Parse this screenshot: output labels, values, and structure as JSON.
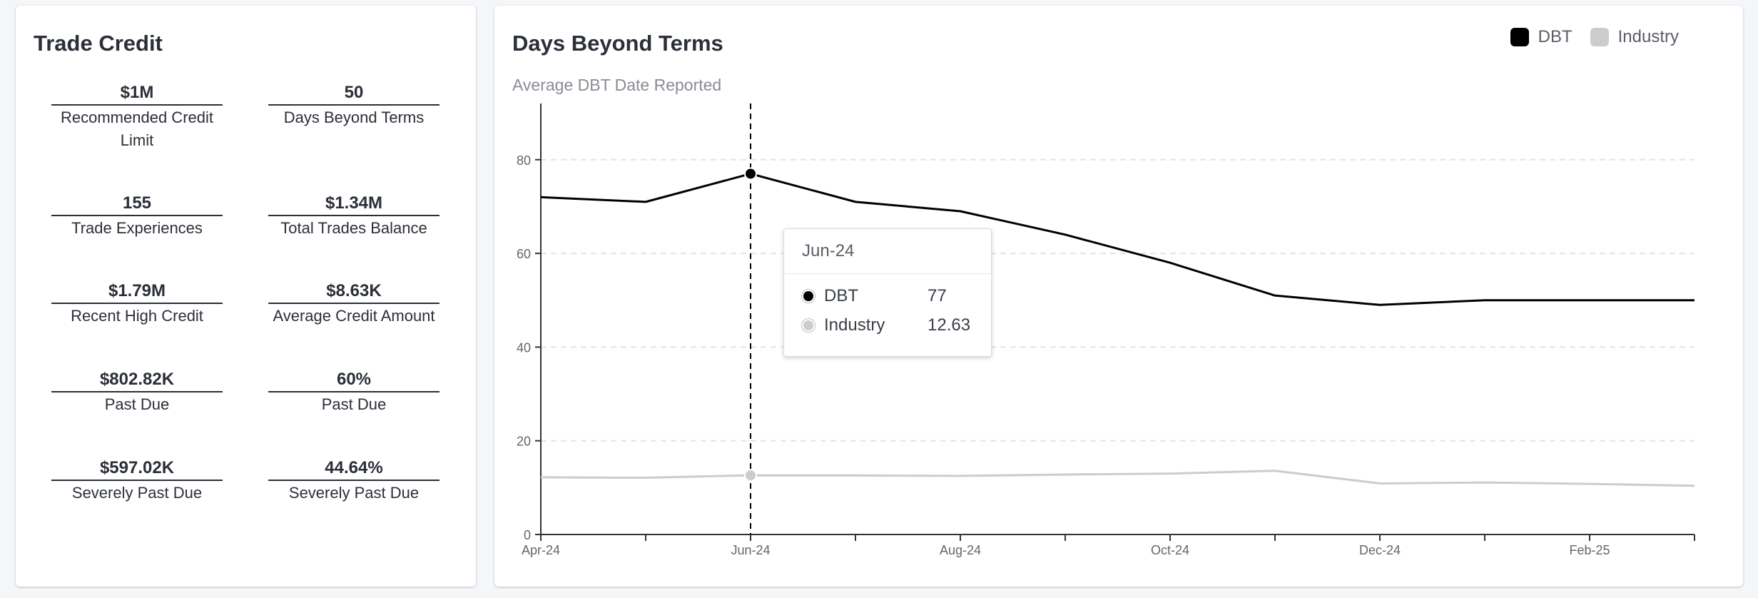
{
  "trade_credit": {
    "title": "Trade Credit",
    "metrics": [
      {
        "value": "$1M",
        "label": "Recommended Credit Limit"
      },
      {
        "value": "50",
        "label": "Days Beyond Terms"
      },
      {
        "value": "155",
        "label": "Trade Experiences"
      },
      {
        "value": "$1.34M",
        "label": "Total Trades Balance"
      },
      {
        "value": "$1.79M",
        "label": "Recent High Credit"
      },
      {
        "value": "$8.63K",
        "label": "Average Credit Amount"
      },
      {
        "value": "$802.82K",
        "label": "Past Due"
      },
      {
        "value": "60%",
        "label": "Past Due"
      },
      {
        "value": "$597.02K",
        "label": "Severely Past Due"
      },
      {
        "value": "44.64%",
        "label": "Severely Past Due"
      }
    ]
  },
  "dbt_chart": {
    "title": "Days Beyond Terms",
    "subtitle": "Average DBT Date Reported",
    "legend": [
      {
        "name": "DBT",
        "color": "#000000"
      },
      {
        "name": "Industry",
        "color": "#cccccc"
      }
    ],
    "tooltip": {
      "header": "Jun-24",
      "rows": [
        {
          "name": "DBT",
          "value": "77",
          "color": "#000000"
        },
        {
          "name": "Industry",
          "value": "12.63",
          "color": "#cccccc"
        }
      ]
    }
  },
  "chart_data": {
    "type": "line",
    "title": "Days Beyond Terms",
    "subtitle": "Average DBT Date Reported",
    "x": [
      "Apr-24",
      "May-24",
      "Jun-24",
      "Jul-24",
      "Aug-24",
      "Sep-24",
      "Oct-24",
      "Nov-24",
      "Dec-24",
      "Jan-25",
      "Feb-25",
      "Mar-25"
    ],
    "x_tick_labels": [
      "Apr-24",
      "",
      "Jun-24",
      "",
      "Aug-24",
      "",
      "Oct-24",
      "",
      "Dec-24",
      "",
      "Feb-25",
      ""
    ],
    "series": [
      {
        "name": "DBT",
        "color": "#000000",
        "values": [
          72,
          71,
          77,
          71,
          69,
          64,
          58,
          51,
          49,
          50,
          50,
          50
        ]
      },
      {
        "name": "Industry",
        "color": "#cccccc",
        "values": [
          12.2,
          12.1,
          12.63,
          12.6,
          12.5,
          12.8,
          13.0,
          13.6,
          10.9,
          11.1,
          10.8,
          10.4
        ]
      }
    ],
    "ylim": [
      0,
      92
    ],
    "yticks": [
      0,
      20,
      40,
      60,
      80
    ],
    "grid": true,
    "legend": "top-right",
    "highlight_index": 2
  }
}
